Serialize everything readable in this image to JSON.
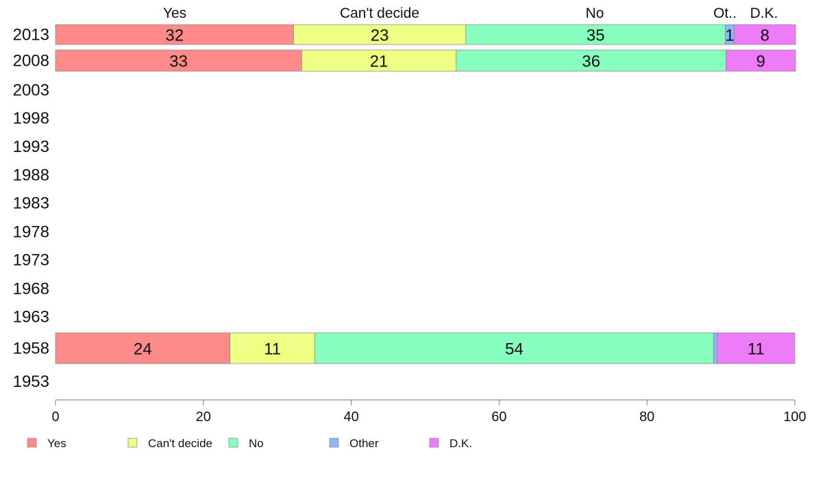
{
  "chart_data": {
    "type": "bar",
    "orientation": "horizontal",
    "stacked": true,
    "categories": [
      "2013",
      "2008",
      "2003",
      "1998",
      "1993",
      "1988",
      "1983",
      "1978",
      "1973",
      "1968",
      "1963",
      "1958",
      "1953"
    ],
    "series": [
      {
        "name": "Yes",
        "color": "#ff8a8a",
        "values": [
          32.2,
          33.3,
          null,
          null,
          null,
          null,
          null,
          null,
          null,
          null,
          null,
          23.6,
          null
        ],
        "labels": [
          "32",
          "33",
          "",
          "",
          "",
          "",
          "",
          "",
          "",
          "",
          "",
          "24",
          ""
        ]
      },
      {
        "name": "Can't decide",
        "color": "#efff84",
        "values": [
          23.3,
          20.9,
          null,
          null,
          null,
          null,
          null,
          null,
          null,
          null,
          null,
          11.5,
          null
        ],
        "labels": [
          "23",
          "21",
          "",
          "",
          "",
          "",
          "",
          "",
          "",
          "",
          "",
          "11",
          ""
        ]
      },
      {
        "name": "No",
        "color": "#88ffbf",
        "values": [
          35.1,
          36.5,
          null,
          null,
          null,
          null,
          null,
          null,
          null,
          null,
          null,
          53.9,
          null
        ],
        "labels": [
          "35",
          "36",
          "",
          "",
          "",
          "",
          "",
          "",
          "",
          "",
          "",
          "54",
          ""
        ]
      },
      {
        "name": "Other",
        "color": "#8ab8ff",
        "values": [
          1.2,
          0.0,
          null,
          null,
          null,
          null,
          null,
          null,
          null,
          null,
          null,
          0.5,
          null
        ],
        "labels": [
          "1",
          "",
          "",
          "",
          "",
          "",
          "",
          "",
          "",
          "",
          "",
          "",
          ""
        ]
      },
      {
        "name": "D.K.",
        "color": "#ee7bf8",
        "values": [
          8.3,
          9.4,
          null,
          null,
          null,
          null,
          null,
          null,
          null,
          null,
          null,
          10.5,
          null
        ],
        "labels": [
          "8",
          "9",
          "",
          "",
          "",
          "",
          "",
          "",
          "",
          "",
          "",
          "11",
          ""
        ]
      }
    ],
    "top_headers": [
      "Yes",
      "Can't decide",
      "No",
      "Ot..",
      "D.K."
    ],
    "xlim": [
      0,
      100
    ],
    "xticks": [
      0,
      20,
      40,
      60,
      80,
      100
    ],
    "legend": [
      "Yes",
      "Can't decide",
      "No",
      "Other",
      "D.K."
    ],
    "legend_position": "bottom",
    "grid": false
  }
}
